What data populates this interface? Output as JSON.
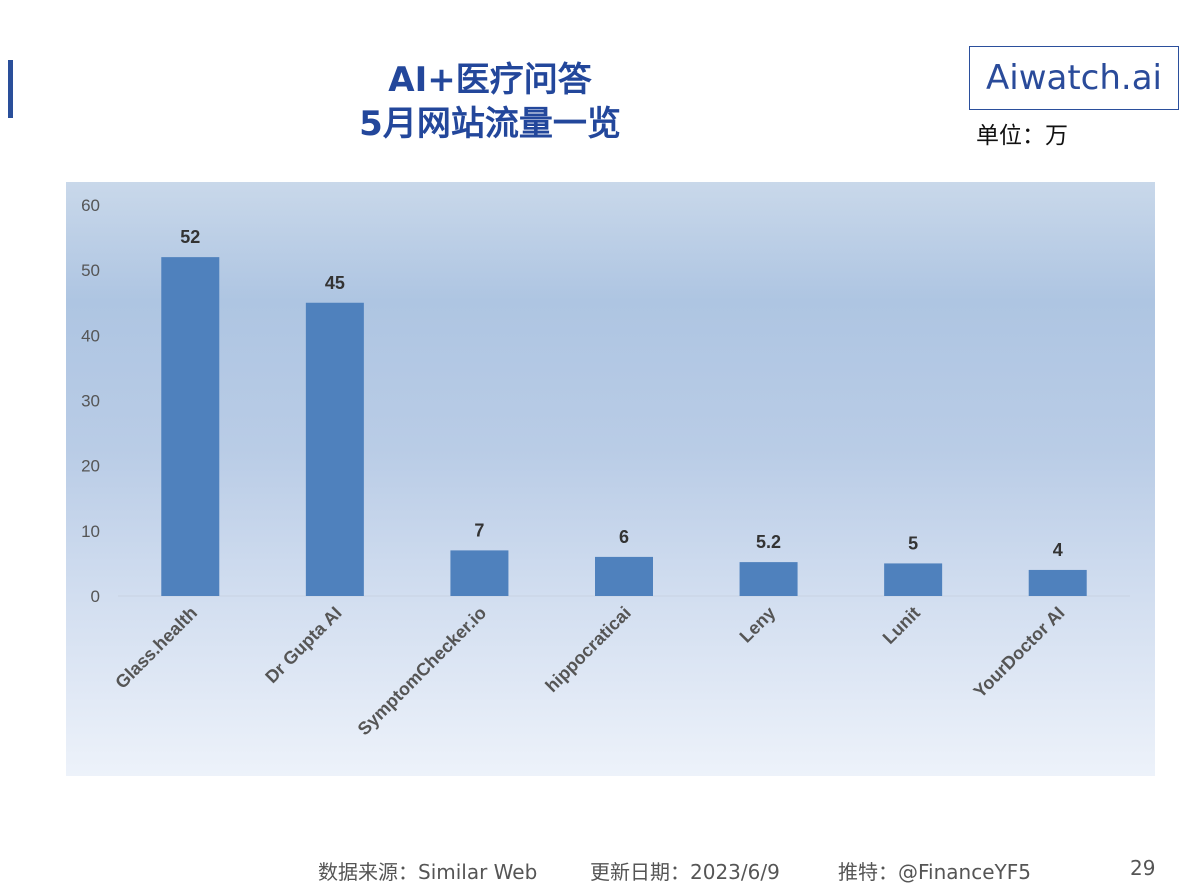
{
  "header": {
    "title_line1": "AI+医疗问答",
    "title_line2": "5月网站流量一览",
    "brand": "Aiwatch.ai",
    "unit": "单位：万"
  },
  "footer": {
    "source": "数据来源：Similar Web",
    "updated": "更新日期：2023/6/9",
    "twitter": "推特：@FinanceYF5",
    "page_number": "29"
  },
  "colors": {
    "bar": "#4f81bd",
    "title": "#23479b"
  },
  "chart_data": {
    "type": "bar",
    "title": "",
    "xlabel": "",
    "ylabel": "",
    "categories": [
      "Glass.health",
      "Dr Gupta AI",
      "SymptomChecker.io",
      "hippocraticai",
      "Leny",
      "Lunit",
      "YourDoctor AI"
    ],
    "values": [
      52,
      45,
      7,
      6,
      5.2,
      5,
      4
    ],
    "data_labels": [
      "52",
      "45",
      "7",
      "6",
      "5.2",
      "5",
      "4"
    ],
    "ylim": [
      0,
      60
    ],
    "yticks": [
      0,
      10,
      20,
      30,
      40,
      50,
      60
    ],
    "grid": false,
    "legend": "none"
  }
}
